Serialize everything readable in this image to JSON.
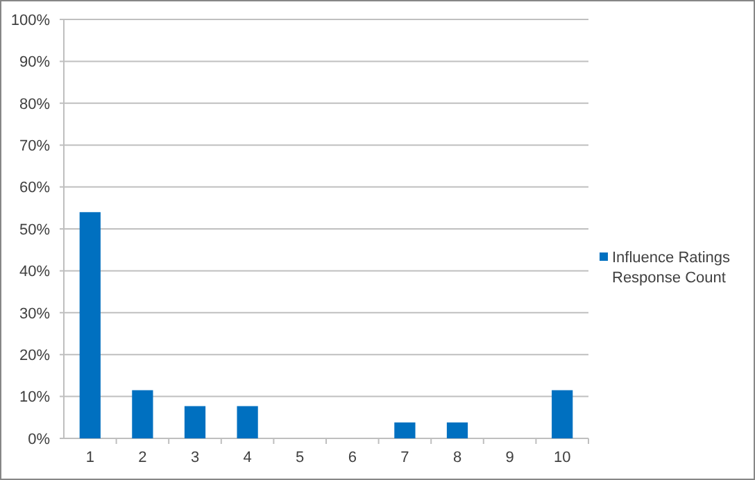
{
  "chart_data": {
    "type": "bar",
    "categories": [
      "1",
      "2",
      "3",
      "4",
      "5",
      "6",
      "7",
      "8",
      "9",
      "10"
    ],
    "series": [
      {
        "name": "Influence Ratings Response Count",
        "color": "#0070c0",
        "values": [
          54,
          11.5,
          7.7,
          7.7,
          0,
          0,
          3.8,
          3.8,
          0,
          11.5
        ]
      }
    ],
    "ylim": [
      0,
      100
    ],
    "yticks": [
      {
        "value": 0,
        "label": "0%"
      },
      {
        "value": 10,
        "label": "10%"
      },
      {
        "value": 20,
        "label": "20%"
      },
      {
        "value": 30,
        "label": "30%"
      },
      {
        "value": 40,
        "label": "40%"
      },
      {
        "value": 50,
        "label": "50%"
      },
      {
        "value": 60,
        "label": "60%"
      },
      {
        "value": 70,
        "label": "70%"
      },
      {
        "value": 80,
        "label": "80%"
      },
      {
        "value": 90,
        "label": "90%"
      },
      {
        "value": 100,
        "label": "100%"
      }
    ],
    "grid": "y",
    "legend": "right"
  }
}
